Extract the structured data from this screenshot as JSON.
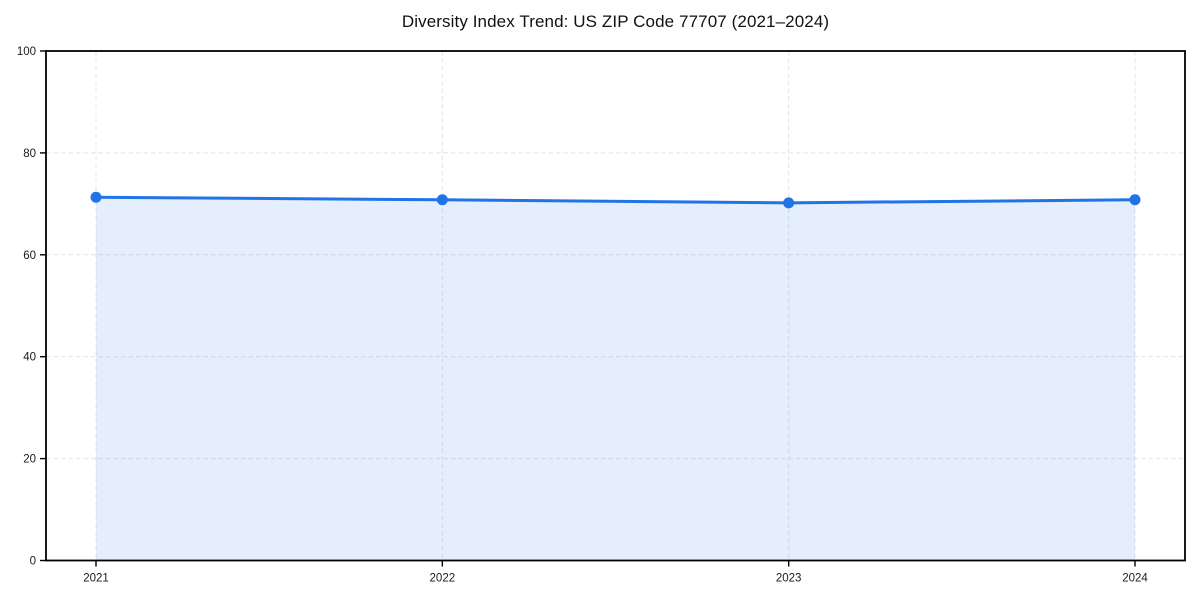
{
  "chart_data": {
    "type": "line",
    "title": "Diversity Index Trend: US ZIP Code 77707 (2021–2024)",
    "categories": [
      "2021",
      "2022",
      "2023",
      "2024"
    ],
    "series": [
      {
        "name": "Diversity Index",
        "values": [
          71.3,
          70.8,
          70.2,
          70.8
        ]
      }
    ],
    "xlabel": "",
    "ylabel": "",
    "ylim": [
      0,
      100
    ],
    "y_ticks": [
      0,
      20,
      40,
      60,
      80,
      100
    ],
    "grid": true,
    "grid_style": "dashed",
    "legend_position": "none",
    "area_fill": true,
    "marker": "circle",
    "colors": {
      "line": "#2273e5",
      "marker": "#2273e5",
      "fill": "rgba(34, 115, 229, 0.12)",
      "grid": "#e4e4e4",
      "spine": "#000000",
      "tick_text": "#1a1a1a",
      "title_text": "#111111",
      "background": "#ffffff"
    }
  }
}
